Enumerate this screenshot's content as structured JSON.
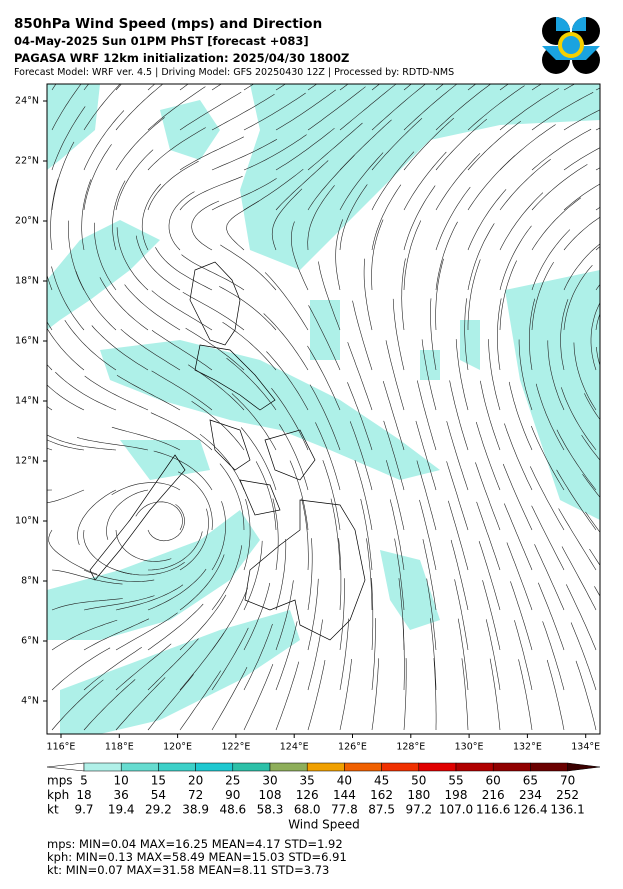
{
  "header": {
    "title": "850hPa Wind Speed (mps) and Direction",
    "valid_time": "04-May-2025 Sun 01PM PhST [forecast +083]",
    "initialization": "PAGASA WRF 12km initialization: 2025/04/30 1800Z",
    "credits": "Forecast Model: WRF ver. 4.5 | Driving Model: GFS 20250430 12Z | Processed by: RDTD-NMS"
  },
  "map": {
    "lat_labels": [
      "24°N",
      "22°N",
      "20°N",
      "18°N",
      "16°N",
      "14°N",
      "12°N",
      "10°N",
      "8°N",
      "6°N",
      "4°N"
    ],
    "lon_labels": [
      "116°E",
      "118°E",
      "120°E",
      "122°E",
      "124°E",
      "126°E",
      "128°E",
      "130°E",
      "132°E",
      "134°E"
    ]
  },
  "colorbar": {
    "label": "Wind Speed",
    "rows": [
      {
        "unit": "mps",
        "labels": [
          "5",
          "10",
          "15",
          "20",
          "25",
          "30",
          "35",
          "40",
          "45",
          "50",
          "55",
          "60",
          "65",
          "70"
        ]
      },
      {
        "unit": "kph",
        "labels": [
          "18",
          "36",
          "54",
          "72",
          "90",
          "108",
          "126",
          "144",
          "162",
          "180",
          "198",
          "216",
          "234",
          "252"
        ]
      },
      {
        "unit": "kt",
        "labels": [
          "9.7",
          "19.4",
          "29.2",
          "38.9",
          "48.6",
          "58.3",
          "68.0",
          "77.8",
          "87.5",
          "97.2",
          "107.0",
          "116.6",
          "126.4",
          "136.1"
        ]
      }
    ]
  },
  "stats": [
    "mps: MIN=0.04   MAX=16.25   MEAN=4.17   STD=1.92",
    "kph:  MIN=0.13   MAX=58.49   MEAN=15.03   STD=6.91",
    "kt:     MIN=0.07   MAX=31.58   MEAN=8.11   STD=3.73"
  ]
}
